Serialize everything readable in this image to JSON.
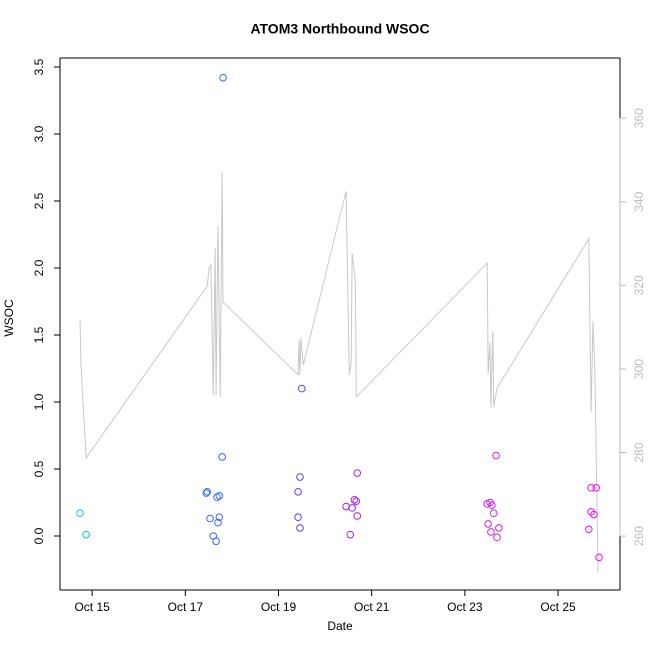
{
  "chart_data": {
    "type": "scatter",
    "title": "ATOM3 Northbound WSOC",
    "x_label": "Date",
    "y_label": "WSOC",
    "xlim": [
      14.31,
      26.33
    ],
    "xticks": [
      {
        "value": 15,
        "label": "Oct 15"
      },
      {
        "value": 17,
        "label": "Oct 17"
      },
      {
        "value": 19,
        "label": "Oct 19"
      },
      {
        "value": 21,
        "label": "Oct 21"
      },
      {
        "value": 23,
        "label": "Oct 23"
      },
      {
        "value": 25,
        "label": "Oct 25"
      }
    ],
    "ylim": [
      -0.403,
      3.567
    ],
    "yticks": [
      {
        "value": 0,
        "label": "0.0"
      },
      0.5,
      {
        "value": 1,
        "label": "1.0"
      },
      1.5,
      {
        "value": 2,
        "label": "2.0"
      },
      2.5,
      {
        "value": 3,
        "label": "3.0"
      },
      3.5
    ],
    "y2lim": [
      247.1,
      374.4
    ],
    "y2ticks": [
      260,
      280,
      300,
      320,
      340,
      360
    ],
    "y2_color": "#bbbbbb",
    "series": [
      {
        "type": "scatter",
        "x": [
          14.74,
          14.87,
          17.45,
          17.47,
          17.53,
          17.6,
          17.66,
          17.68,
          17.73,
          17.7,
          17.73,
          17.79,
          17.81,
          19.42,
          19.42,
          19.46,
          19.46,
          19.5,
          20.45,
          20.54,
          20.58,
          20.63,
          20.67,
          20.69,
          20.69,
          23.48,
          23.54,
          23.5,
          23.56,
          23.58,
          23.62,
          23.67,
          23.69,
          23.73,
          25.66,
          25.71,
          25.71,
          25.77,
          25.82,
          25.88
        ],
        "values": [
          0.17,
          0.01,
          0.32,
          0.33,
          0.13,
          0.0,
          -0.04,
          0.29,
          0.3,
          0.1,
          0.14,
          0.59,
          3.42,
          0.33,
          0.14,
          0.44,
          0.06,
          1.1,
          0.22,
          0.01,
          0.21,
          0.27,
          0.26,
          0.15,
          0.47,
          0.24,
          0.25,
          0.09,
          0.03,
          0.23,
          0.17,
          0.6,
          -0.01,
          0.06,
          0.05,
          0.36,
          0.18,
          0.16,
          0.36,
          -0.16
        ],
        "colors": [
          "#00c8ff",
          "#00c4ee",
          "#2f6bff",
          "#2f6bff",
          "#2f6bff",
          "#3366ff",
          "#3366ff",
          "#3366ff",
          "#3366ff",
          "#3366ff",
          "#3366ff",
          "#3a5fff",
          "#3a5fff",
          "#5a3ff0",
          "#5a3ff0",
          "#5a3ff0",
          "#5a3ff0",
          "#5a3ff0",
          "#a020f0",
          "#a020f0",
          "#a020f0",
          "#a820f0",
          "#a820f0",
          "#aa20f0",
          "#aa20f0",
          "#cc22ee",
          "#cc22ee",
          "#cc22ee",
          "#cc22ee",
          "#cc22ee",
          "#cc22ee",
          "#cc22ee",
          "#cc22ee",
          "#cc22ee",
          "#ee11ee",
          "#ee11ee",
          "#ee11ee",
          "#ee11ee",
          "#ee11ee",
          "#ee11ee"
        ]
      },
      {
        "type": "line",
        "axis": "y2",
        "color": "#c8c8c8",
        "x": [
          14.74,
          14.76,
          14.87,
          17.47,
          17.51,
          17.55,
          17.6,
          17.64,
          17.66,
          17.7,
          17.75,
          17.79,
          17.81,
          19.42,
          19.44,
          19.46,
          19.48,
          19.53,
          20.45,
          20.52,
          20.56,
          20.58,
          20.65,
          20.67,
          23.48,
          23.5,
          23.54,
          23.56,
          23.6,
          23.62,
          23.69,
          25.66,
          25.71,
          25.75,
          25.79,
          25.86
        ],
        "values": [
          311.7,
          300.9,
          278.7,
          319.8,
          324.1,
          324.8,
          293.7,
          328.9,
          293.7,
          334.2,
          293.3,
          347.1,
          316.0,
          298.6,
          306.9,
          298.6,
          307.4,
          300.9,
          342.5,
          298.6,
          301.4,
          327.7,
          320.5,
          293.3,
          325.3,
          298.8,
          306.4,
          290.6,
          309.0,
          290.9,
          295.4,
          331.1,
          289.7,
          311.4,
          300.2,
          251.1
        ]
      }
    ]
  }
}
